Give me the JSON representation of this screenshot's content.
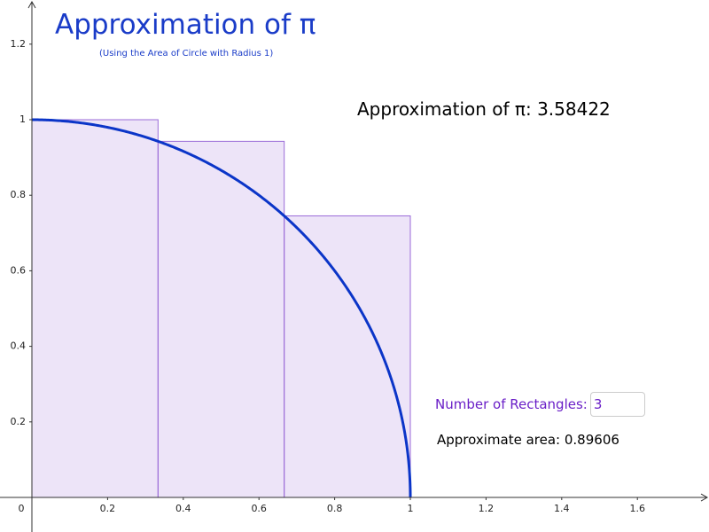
{
  "chart_data": {
    "type": "riemann",
    "title": "Approximation of π",
    "subtitle": "(Using the Area of Circle with Radius 1)",
    "pi_label": "Approximation of π:",
    "pi_value": 3.58422,
    "input_label": "Number of Rectangles:",
    "num_rectangles": 3,
    "area_label": "Approximate area:",
    "area_value": 0.89606,
    "edges": [
      0,
      0.3333,
      0.6667,
      1
    ],
    "values": [
      1,
      0.9428,
      0.7454
    ],
    "rect_color": "#9a6bd8",
    "curve": {
      "radius": 1,
      "color": "#0b35c8"
    },
    "xlim": [
      -0.0843,
      1.7892
    ],
    "ylim": [
      -0.0915,
      1.3169
    ],
    "xticks": [
      0,
      0.2,
      0.4,
      0.6,
      0.8,
      1,
      1.2,
      1.4,
      1.6
    ],
    "yticks": [
      0.2,
      0.4,
      0.6,
      0.8,
      1,
      1.2
    ]
  }
}
